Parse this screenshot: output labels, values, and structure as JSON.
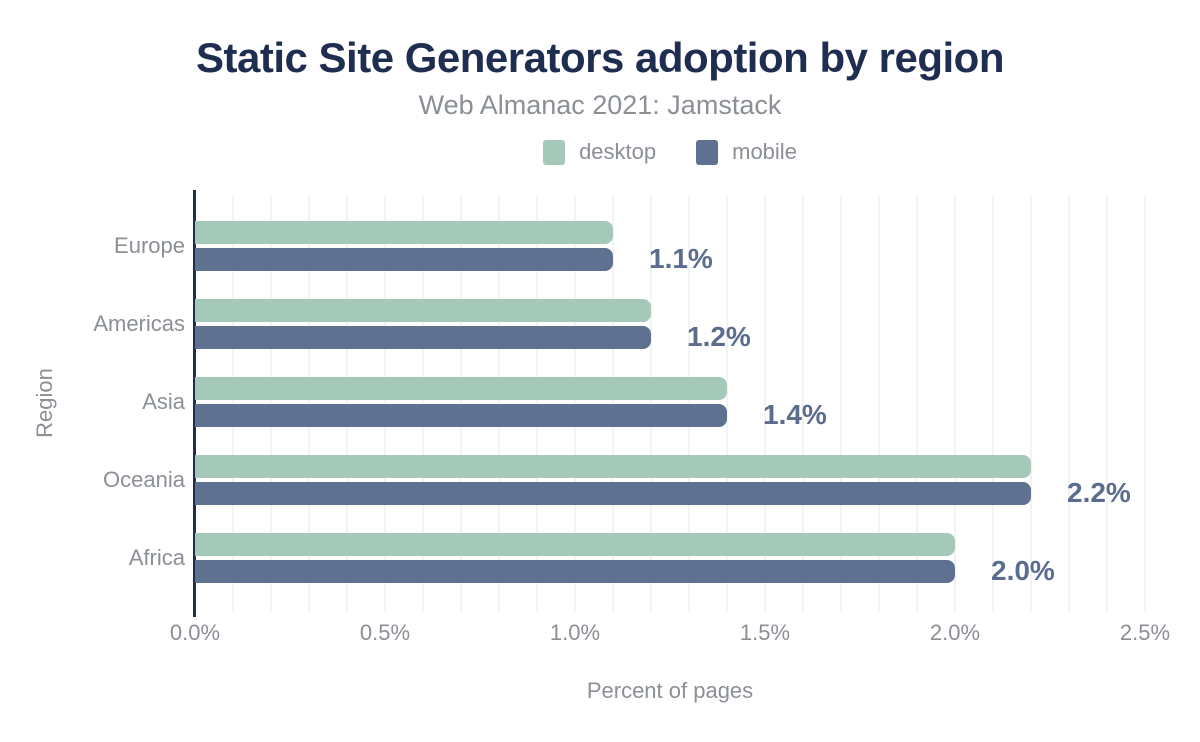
{
  "header": {
    "title": "Static Site Generators adoption by region",
    "subtitle": "Web Almanac 2021: Jamstack"
  },
  "chart_data": {
    "type": "bar",
    "orientation": "horizontal",
    "title": "Static Site Generators adoption by region",
    "subtitle": "Web Almanac 2021: Jamstack",
    "categories": [
      "Europe",
      "Americas",
      "Asia",
      "Oceania",
      "Africa"
    ],
    "series": [
      {
        "name": "desktop",
        "color": "#a4c9b8",
        "values": [
          1.1,
          1.2,
          1.4,
          2.2,
          2.0
        ]
      },
      {
        "name": "mobile",
        "color": "#5f7190",
        "values": [
          1.1,
          1.2,
          1.4,
          2.2,
          2.0
        ]
      }
    ],
    "data_labels": [
      "1.1%",
      "1.2%",
      "1.4%",
      "2.2%",
      "2.0%"
    ],
    "xlabel": "Percent of pages",
    "ylabel": "Region",
    "xlim": [
      0,
      2.5
    ],
    "xtick_labels": [
      "0.0%",
      "0.5%",
      "1.0%",
      "1.5%",
      "2.0%",
      "2.5%"
    ],
    "grid": {
      "vertical_minor_step": 0.1,
      "color": "#f3f3f3",
      "visible": true
    },
    "legend_position": "top"
  },
  "colors": {
    "title": "#1e2d50",
    "axis_line": "#1e2d50",
    "muted_text": "#8b8f96",
    "data_label": "#5b6d8e",
    "desktop": "#a4c9b8",
    "mobile": "#5f7190",
    "gridline": "#f3f3f3",
    "background": "#ffffff"
  }
}
